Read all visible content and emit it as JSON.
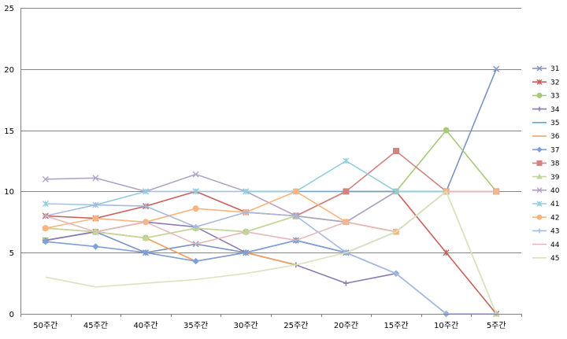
{
  "chart_data": {
    "type": "line",
    "categories": [
      "50주간",
      "45주간",
      "40주간",
      "35주간",
      "30주간",
      "25주간",
      "20주간",
      "15주간",
      "10주간",
      "5주간"
    ],
    "ylim": [
      0,
      25
    ],
    "yticks": [
      "0",
      "5",
      "10",
      "15",
      "20",
      "25"
    ],
    "grid": "horizontal",
    "legend_position": "right",
    "series": [
      {
        "name": "31",
        "color": "#7b93c4",
        "marker": "x",
        "values": [
          6,
          6.7,
          5,
          5.7,
          5,
          6,
          5,
          6.7,
          10,
          20
        ]
      },
      {
        "name": "32",
        "color": "#c9605b",
        "marker": "star",
        "values": [
          8,
          7.8,
          8.8,
          10,
          8.3,
          8,
          10,
          10,
          5,
          0
        ]
      },
      {
        "name": "33",
        "color": "#a8c97a",
        "marker": "circle",
        "values": [
          6,
          6.7,
          6.2,
          7,
          6.7,
          8,
          7.5,
          10,
          15,
          10
        ]
      },
      {
        "name": "34",
        "color": "#8a78b4",
        "marker": "plus",
        "values": [
          6,
          6.7,
          7.5,
          7.1,
          5,
          4,
          2.5,
          3.3,
          null,
          null
        ]
      },
      {
        "name": "35",
        "color": "#5aaed0",
        "marker": "none",
        "values": [
          null,
          null,
          null,
          null,
          10,
          10,
          10,
          10,
          10,
          10
        ]
      },
      {
        "name": "36",
        "color": "#f2a05a",
        "marker": "none",
        "values": [
          7,
          6.7,
          6.2,
          4.3,
          5,
          4,
          null,
          null,
          null,
          null
        ]
      },
      {
        "name": "37",
        "color": "#7f9fd6",
        "marker": "diamond",
        "values": [
          5.9,
          5.5,
          5,
          4.3,
          5,
          6,
          5,
          3.3,
          0,
          null
        ]
      },
      {
        "name": "38",
        "color": "#d08480",
        "marker": "square",
        "values": [
          null,
          null,
          null,
          null,
          null,
          8,
          10,
          13.3,
          10,
          10
        ]
      },
      {
        "name": "39",
        "color": "#c3d69b",
        "marker": "triangle",
        "values": [
          7,
          6.7,
          6.2,
          7,
          6.7,
          8,
          7.5,
          6.7,
          10,
          0
        ]
      },
      {
        "name": "40",
        "color": "#b3a2c7",
        "marker": "x",
        "values": [
          11,
          11.1,
          10,
          11.4,
          10,
          8,
          7.5,
          10,
          10,
          10
        ]
      },
      {
        "name": "41",
        "color": "#93cddd",
        "marker": "star",
        "values": [
          9,
          8.9,
          10,
          10,
          10,
          10,
          12.5,
          10,
          10,
          10
        ]
      },
      {
        "name": "42",
        "color": "#fab47e",
        "marker": "circle",
        "values": [
          7,
          7.8,
          7.5,
          8.6,
          8.3,
          10,
          7.5,
          6.7,
          10,
          10
        ]
      },
      {
        "name": "43",
        "color": "#a6b9e0",
        "marker": "plus",
        "values": [
          8,
          8.9,
          8.8,
          7.1,
          8.3,
          8,
          5,
          3.3,
          0,
          0
        ]
      },
      {
        "name": "44",
        "color": "#e6b9b8",
        "marker": "none",
        "values": [
          8,
          6.7,
          7.5,
          5.7,
          6.7,
          6,
          7.5,
          6.7,
          10,
          10
        ]
      },
      {
        "name": "45",
        "color": "#d7e4bd",
        "marker": "none",
        "values": [
          3,
          2.2,
          2.5,
          2.8,
          3.3,
          4,
          5,
          6.7,
          10,
          0
        ]
      }
    ]
  }
}
